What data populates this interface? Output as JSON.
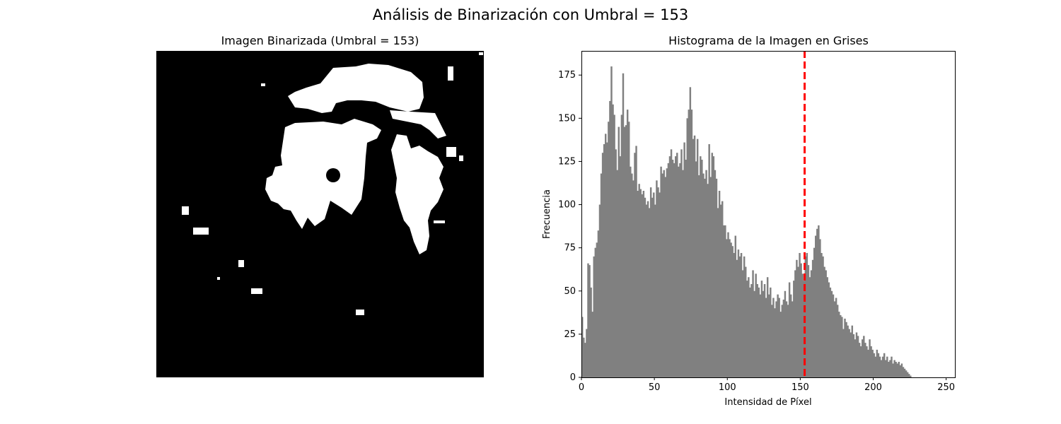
{
  "figure": {
    "suptitle": "Análisis de Binarización con Umbral = 153"
  },
  "left_panel": {
    "title": "Imagen Binarizada (Umbral = 153)",
    "image_desc_colors": {
      "foreground": "#ffffff",
      "background": "#000000"
    }
  },
  "chart_data": {
    "type": "bar",
    "title": "Histograma de la Imagen en Grises",
    "xlabel": "Intensidad de Píxel",
    "ylabel": "Frecuencia",
    "xlim": [
      0,
      256
    ],
    "ylim": [
      0,
      189
    ],
    "xticks": [
      0,
      50,
      100,
      150,
      200,
      250
    ],
    "yticks": [
      0,
      25,
      50,
      75,
      100,
      125,
      150,
      175
    ],
    "bar_color": "#808080",
    "threshold": {
      "value": 153,
      "color": "#ff0000",
      "style": "dashed"
    },
    "bins_start": 0,
    "bin_width": 1,
    "values": [
      35,
      23,
      20,
      28,
      66,
      65,
      52,
      38,
      70,
      75,
      78,
      85,
      100,
      118,
      130,
      135,
      141,
      136,
      148,
      160,
      180,
      158,
      152,
      132,
      120,
      145,
      128,
      152,
      176,
      145,
      146,
      155,
      148,
      122,
      118,
      114,
      130,
      134,
      108,
      112,
      109,
      106,
      108,
      104,
      100,
      102,
      98,
      110,
      104,
      107,
      100,
      114,
      110,
      107,
      122,
      118,
      120,
      116,
      121,
      124,
      128,
      132,
      126,
      124,
      128,
      130,
      122,
      124,
      132,
      120,
      136,
      126,
      150,
      155,
      168,
      155,
      138,
      140,
      125,
      138,
      117,
      128,
      126,
      118,
      115,
      120,
      112,
      135,
      116,
      130,
      128,
      120,
      115,
      98,
      108,
      100,
      102,
      88,
      88,
      80,
      84,
      80,
      78,
      76,
      72,
      82,
      68,
      74,
      70,
      72,
      62,
      70,
      64,
      56,
      58,
      52,
      54,
      62,
      50,
      60,
      54,
      52,
      48,
      56,
      50,
      54,
      46,
      58,
      48,
      52,
      42,
      46,
      40,
      44,
      48,
      46,
      38,
      42,
      45,
      50,
      44,
      42,
      55,
      48,
      44,
      56,
      62,
      68,
      64,
      72,
      66,
      60,
      56,
      70,
      72,
      65,
      58,
      62,
      68,
      75,
      82,
      86,
      88,
      80,
      72,
      70,
      64,
      62,
      58,
      55,
      52,
      50,
      48,
      44,
      46,
      42,
      38,
      36,
      35,
      28,
      34,
      32,
      30,
      28,
      26,
      30,
      25,
      22,
      26,
      24,
      20,
      18,
      22,
      24,
      20,
      18,
      16,
      22,
      18,
      16,
      14,
      12,
      16,
      14,
      12,
      10,
      12,
      14,
      10,
      12,
      9,
      10,
      12,
      8,
      10,
      9,
      8,
      9,
      7,
      8,
      6,
      5,
      4,
      3,
      2,
      1
    ]
  }
}
